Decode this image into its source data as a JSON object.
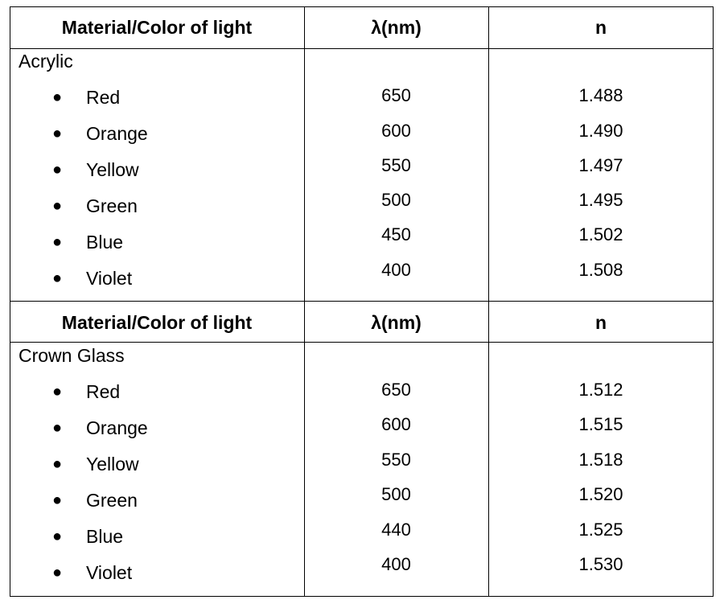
{
  "headers": {
    "material": "Material/Color of light",
    "wavelength": "λ(nm)",
    "index": "n"
  },
  "sections": [
    {
      "material": "Acrylic",
      "rows": [
        {
          "color": "Red",
          "wavelength": "650",
          "n": "1.488"
        },
        {
          "color": "Orange",
          "wavelength": "600",
          "n": "1.490"
        },
        {
          "color": "Yellow",
          "wavelength": "550",
          "n": "1.497"
        },
        {
          "color": "Green",
          "wavelength": "500",
          "n": "1.495"
        },
        {
          "color": "Blue",
          "wavelength": "450",
          "n": "1.502"
        },
        {
          "color": "Violet",
          "wavelength": "400",
          "n": "1.508"
        }
      ]
    },
    {
      "material": "Crown Glass",
      "rows": [
        {
          "color": "Red",
          "wavelength": "650",
          "n": "1.512"
        },
        {
          "color": "Orange",
          "wavelength": "600",
          "n": "1.515"
        },
        {
          "color": "Yellow",
          "wavelength": "550",
          "n": "1.518"
        },
        {
          "color": "Green",
          "wavelength": "500",
          "n": "1.520"
        },
        {
          "color": "Blue",
          "wavelength": "440",
          "n": "1.525"
        },
        {
          "color": "Violet",
          "wavelength": "400",
          "n": "1.530"
        }
      ]
    }
  ]
}
